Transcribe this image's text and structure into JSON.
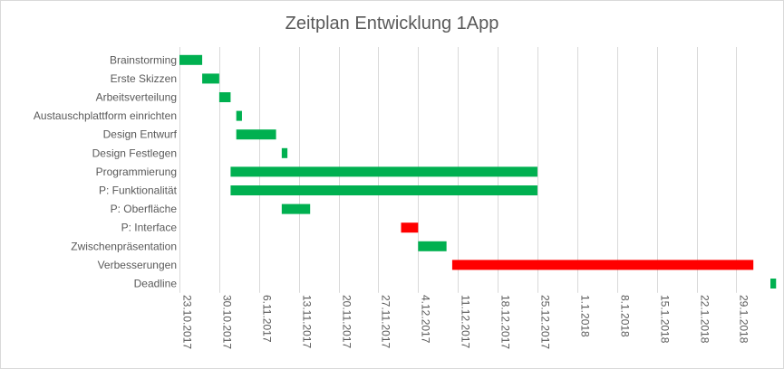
{
  "chart_data": {
    "type": "bar",
    "orientation": "horizontal-gantt",
    "title": "Zeitplan Entwicklung 1App",
    "grid": true,
    "legend": "none",
    "x_axis": {
      "type": "date",
      "range": [
        "2017-10-23",
        "2018-02-04"
      ],
      "tick_labels": [
        "23.10.2017",
        "30.10.2017",
        "6.11.2017",
        "13.11.2017",
        "20.11.2017",
        "27.11.2017",
        "4.12.2017",
        "11.12.2017",
        "18.12.2017",
        "25.12.2017",
        "1.1.2018",
        "8.1.2018",
        "15.1.2018",
        "22.1.2018",
        "29.1.2018"
      ],
      "tick_dates": [
        "2017-10-23",
        "2017-10-30",
        "2017-11-06",
        "2017-11-13",
        "2017-11-20",
        "2017-11-27",
        "2017-12-04",
        "2017-12-11",
        "2017-12-18",
        "2017-12-25",
        "2018-01-01",
        "2018-01-08",
        "2018-01-15",
        "2018-01-22",
        "2018-01-29"
      ]
    },
    "tasks": [
      {
        "name": "Brainstorming",
        "start": "2017-10-23",
        "end": "2017-10-27",
        "color": "#00b050"
      },
      {
        "name": "Erste Skizzen",
        "start": "2017-10-27",
        "end": "2017-10-30",
        "color": "#00b050"
      },
      {
        "name": "Arbeitsverteilung",
        "start": "2017-10-30",
        "end": "2017-11-01",
        "color": "#00b050"
      },
      {
        "name": "Austauschplattform einrichten",
        "start": "2017-11-02",
        "end": "2017-11-03",
        "color": "#00b050"
      },
      {
        "name": "Design Entwurf",
        "start": "2017-11-02",
        "end": "2017-11-09",
        "color": "#00b050"
      },
      {
        "name": "Design Festlegen",
        "start": "2017-11-10",
        "end": "2017-11-11",
        "color": "#00b050"
      },
      {
        "name": "Programmierung",
        "start": "2017-11-01",
        "end": "2017-12-25",
        "color": "#00b050"
      },
      {
        "name": "P: Funktionalität",
        "start": "2017-11-01",
        "end": "2017-12-25",
        "color": "#00b050"
      },
      {
        "name": "P: Oberfläche",
        "start": "2017-11-10",
        "end": "2017-11-15",
        "color": "#00b050"
      },
      {
        "name": "P: Interface",
        "start": "2017-12-01",
        "end": "2017-12-04",
        "color": "#ff0000"
      },
      {
        "name": "Zwischenpräsentation",
        "start": "2017-12-04",
        "end": "2017-12-09",
        "color": "#00b050"
      },
      {
        "name": "Verbesserungen",
        "start": "2017-12-10",
        "end": "2018-02-01",
        "color": "#ff0000"
      },
      {
        "name": "Deadline",
        "start": "2018-02-04",
        "end": "2018-02-05",
        "color": "#00b050"
      }
    ]
  }
}
